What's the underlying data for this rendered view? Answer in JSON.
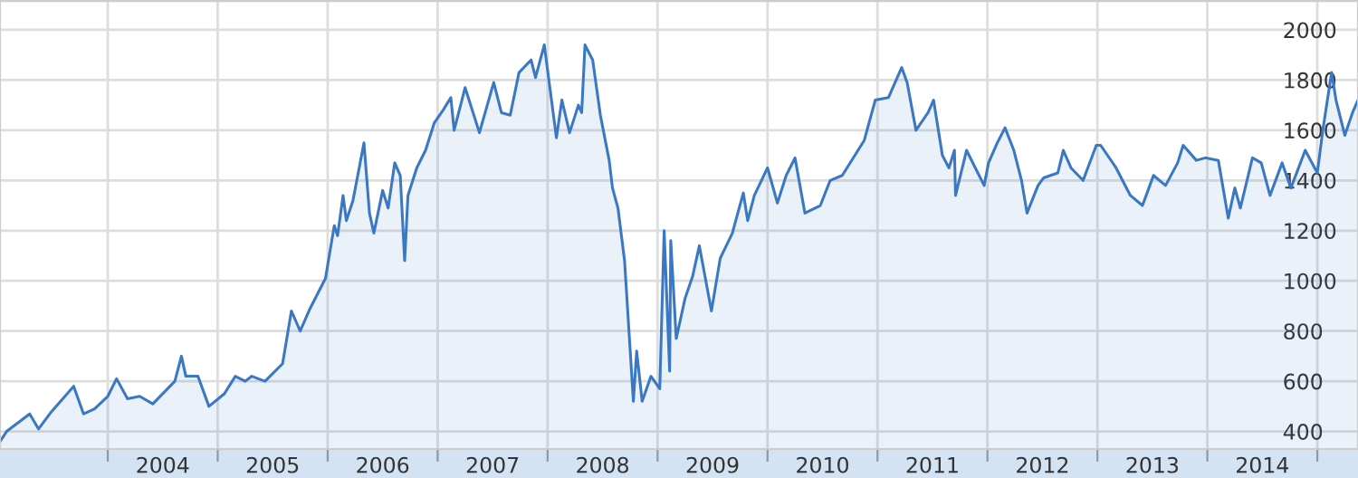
{
  "chart_data": {
    "type": "area",
    "x": [
      2003.02,
      2003.08,
      2003.29,
      2003.37,
      2003.49,
      2003.69,
      2003.78,
      2003.88,
      2004.0,
      2004.08,
      2004.18,
      2004.29,
      2004.41,
      2004.61,
      2004.67,
      2004.71,
      2004.82,
      2004.92,
      2005.06,
      2005.16,
      2005.25,
      2005.31,
      2005.43,
      2005.59,
      2005.67,
      2005.75,
      2005.84,
      2005.98,
      2006.06,
      2006.09,
      2006.14,
      2006.17,
      2006.23,
      2006.33,
      2006.38,
      2006.42,
      2006.5,
      2006.55,
      2006.61,
      2006.66,
      2006.7,
      2006.73,
      2006.81,
      2006.89,
      2006.97,
      2007.05,
      2007.12,
      2007.15,
      2007.25,
      2007.38,
      2007.51,
      2007.58,
      2007.66,
      2007.74,
      2007.85,
      2007.89,
      2007.97,
      2008.08,
      2008.13,
      2008.2,
      2008.28,
      2008.31,
      2008.34,
      2008.41,
      2008.48,
      2008.56,
      2008.59,
      2008.64,
      2008.7,
      2008.78,
      2008.81,
      2008.86,
      2008.94,
      2009.02,
      2009.06,
      2009.11,
      2009.12,
      2009.17,
      2009.25,
      2009.32,
      2009.38,
      2009.49,
      2009.57,
      2009.68,
      2009.78,
      2009.82,
      2009.88,
      2010.0,
      2010.09,
      2010.17,
      2010.25,
      2010.34,
      2010.48,
      2010.57,
      2010.68,
      2010.88,
      2010.98,
      2011.1,
      2011.14,
      2011.22,
      2011.27,
      2011.35,
      2011.46,
      2011.51,
      2011.59,
      2011.65,
      2011.7,
      2011.71,
      2011.81,
      2011.89,
      2011.97,
      2012.01,
      2012.09,
      2012.16,
      2012.24,
      2012.31,
      2012.36,
      2012.46,
      2012.51,
      2012.64,
      2012.69,
      2012.76,
      2012.87,
      2012.99,
      2013.03,
      2013.17,
      2013.3,
      2013.41,
      2013.51,
      2013.62,
      2013.73,
      2013.78,
      2013.9,
      2013.98,
      2014.1,
      2014.19,
      2014.25,
      2014.3,
      2014.41,
      2014.49,
      2014.57,
      2014.68,
      2014.76,
      2014.89,
      2015.0,
      2015.05,
      2015.13,
      2015.17,
      2015.25,
      2015.32,
      2015.37
    ],
    "series": [
      {
        "color": "#3a78c4",
        "values": [
          360,
          400,
          470,
          410,
          480,
          580,
          470,
          490,
          540,
          610,
          530,
          540,
          510,
          600,
          700,
          620,
          620,
          500,
          550,
          620,
          600,
          620,
          600,
          670,
          880,
          800,
          890,
          1010,
          1220,
          1180,
          1340,
          1240,
          1320,
          1550,
          1270,
          1190,
          1360,
          1290,
          1470,
          1420,
          1080,
          1340,
          1450,
          1520,
          1630,
          1680,
          1730,
          1600,
          1770,
          1590,
          1790,
          1670,
          1660,
          1830,
          1880,
          1810,
          1940,
          1570,
          1720,
          1590,
          1700,
          1670,
          1940,
          1880,
          1660,
          1480,
          1370,
          1290,
          1080,
          520,
          720,
          520,
          620,
          570,
          1200,
          640,
          1160,
          770,
          930,
          1020,
          1140,
          880,
          1090,
          1190,
          1350,
          1240,
          1340,
          1450,
          1310,
          1420,
          1490,
          1270,
          1300,
          1400,
          1420,
          1560,
          1720,
          1730,
          1770,
          1850,
          1790,
          1600,
          1670,
          1720,
          1500,
          1450,
          1520,
          1340,
          1520,
          1450,
          1380,
          1470,
          1550,
          1610,
          1520,
          1400,
          1270,
          1380,
          1410,
          1430,
          1520,
          1450,
          1400,
          1540,
          1540,
          1450,
          1340,
          1300,
          1420,
          1380,
          1470,
          1540,
          1480,
          1490,
          1480,
          1250,
          1370,
          1290,
          1490,
          1470,
          1340,
          1470,
          1370,
          1520,
          1430,
          1600,
          1830,
          1720,
          1580,
          1670,
          1720
        ]
      }
    ],
    "xlim": [
      2003.02,
      2015.37
    ],
    "xticks": [
      {
        "value": 2004,
        "label": null
      },
      {
        "value": 2004.5,
        "label": "2004"
      },
      {
        "value": 2005,
        "label": null
      },
      {
        "value": 2005.5,
        "label": "2005"
      },
      {
        "value": 2006,
        "label": null
      },
      {
        "value": 2006.5,
        "label": "2006"
      },
      {
        "value": 2007,
        "label": null
      },
      {
        "value": 2007.5,
        "label": "2007"
      },
      {
        "value": 2008,
        "label": null
      },
      {
        "value": 2008.5,
        "label": "2008"
      },
      {
        "value": 2009,
        "label": null
      },
      {
        "value": 2009.5,
        "label": "2009"
      },
      {
        "value": 2010,
        "label": null
      },
      {
        "value": 2010.5,
        "label": "2010"
      },
      {
        "value": 2011,
        "label": null
      },
      {
        "value": 2011.5,
        "label": "2011"
      },
      {
        "value": 2012,
        "label": null
      },
      {
        "value": 2012.5,
        "label": "2012"
      },
      {
        "value": 2013,
        "label": null
      },
      {
        "value": 2013.5,
        "label": "2013"
      },
      {
        "value": 2014,
        "label": null
      },
      {
        "value": 2014.5,
        "label": "2014"
      },
      {
        "value": 2015,
        "label": null
      }
    ],
    "ylim": [
      330,
      2115
    ],
    "yticks": [
      400,
      600,
      800,
      1000,
      1200,
      1400,
      1600,
      1800,
      2000
    ],
    "grid": true
  }
}
